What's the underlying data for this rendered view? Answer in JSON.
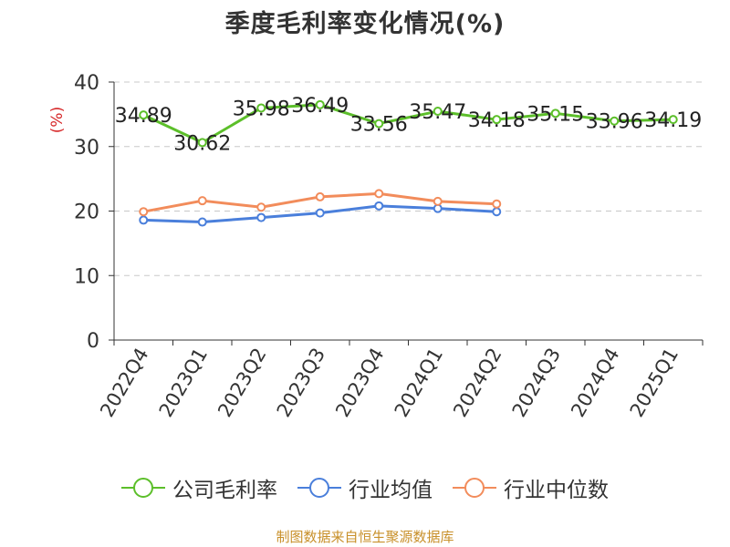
{
  "chart_data": {
    "type": "line",
    "title": "季度毛利率变化情况(%)",
    "ylabel": "(%)",
    "ylim": [
      0,
      40
    ],
    "yticks": [
      0,
      10,
      20,
      30,
      40
    ],
    "grid": true,
    "legend_position": "bottom",
    "categories": [
      "2022Q4",
      "2023Q1",
      "2023Q2",
      "2023Q3",
      "2023Q4",
      "2024Q1",
      "2024Q2",
      "2024Q3",
      "2024Q4",
      "2025Q1"
    ],
    "series": [
      {
        "name": "公司毛利率",
        "color": "#5cbf2a",
        "show_labels": true,
        "values": [
          34.89,
          30.62,
          35.98,
          36.49,
          33.56,
          35.47,
          34.18,
          35.15,
          33.96,
          34.19
        ]
      },
      {
        "name": "行业均值",
        "color": "#4a7fdb",
        "show_labels": false,
        "values": [
          18.6,
          18.3,
          19.0,
          19.7,
          20.8,
          20.4,
          19.9,
          null,
          null,
          null
        ]
      },
      {
        "name": "行业中位数",
        "color": "#f28c5b",
        "show_labels": false,
        "values": [
          19.9,
          21.6,
          20.6,
          22.2,
          22.7,
          21.5,
          21.1,
          null,
          null,
          null
        ]
      }
    ]
  },
  "source": "制图数据来自恒生聚源数据库"
}
